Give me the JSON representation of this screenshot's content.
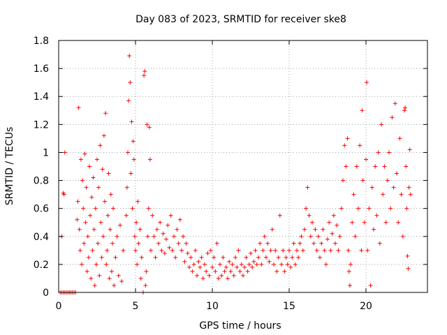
{
  "chart_data": {
    "type": "scatter",
    "title": "Day 083 of 2023, SRMTID for receiver ske8",
    "xlabel": "GPS time / hours",
    "ylabel": "SRMTID / TECUs",
    "xlim": [
      0,
      24
    ],
    "ylim": [
      0,
      1.8
    ],
    "xticks": [
      0,
      5,
      10,
      15,
      20
    ],
    "xtick_labels": [
      "0",
      "5",
      "10",
      "15",
      "20"
    ],
    "yticks": [
      0,
      0.2,
      0.4,
      0.6,
      0.8,
      1.0,
      1.2,
      1.4,
      1.6,
      1.8
    ],
    "ytick_labels": [
      "0",
      "0.2",
      "0.4",
      "0.6",
      "0.8",
      "1",
      "1.2",
      "1.4",
      "1.6",
      "1.8"
    ],
    "grid": true,
    "marker": "+",
    "color": "#ff0000",
    "series": [
      {
        "name": "SRMTID",
        "points": [
          [
            0.1,
            0
          ],
          [
            0.2,
            0
          ],
          [
            0.3,
            0
          ],
          [
            0.4,
            0
          ],
          [
            0.5,
            0
          ],
          [
            0.6,
            0
          ],
          [
            0.7,
            0
          ],
          [
            0.8,
            0
          ],
          [
            0.9,
            0
          ],
          [
            1.0,
            0
          ],
          [
            1.1,
            0
          ],
          [
            0.2,
            0.4
          ],
          [
            0.35,
            0.7
          ],
          [
            0.4,
            1.0
          ],
          [
            0.3,
            0.71
          ],
          [
            1.2,
            0.52
          ],
          [
            1.25,
            0.65
          ],
          [
            1.3,
            1.32
          ],
          [
            1.35,
            0.45
          ],
          [
            1.4,
            0.3
          ],
          [
            1.45,
            0.95
          ],
          [
            1.5,
            0.2
          ],
          [
            1.55,
            0.8
          ],
          [
            1.6,
            0.6
          ],
          [
            1.65,
            0.35
          ],
          [
            1.7,
            0.99
          ],
          [
            1.75,
            0.5
          ],
          [
            1.8,
            0.75
          ],
          [
            1.85,
            0.15
          ],
          [
            1.9,
            0.4
          ],
          [
            1.95,
            0.25
          ],
          [
            2.0,
            0.9
          ],
          [
            2.05,
            0.55
          ],
          [
            2.1,
            0.1
          ],
          [
            2.15,
            0.68
          ],
          [
            2.2,
            0.3
          ],
          [
            2.25,
            0.82
          ],
          [
            2.3,
            0.45
          ],
          [
            2.35,
            0.05
          ],
          [
            2.4,
            0.6
          ],
          [
            2.45,
            0.2
          ],
          [
            2.5,
            0.95
          ],
          [
            2.55,
            0.35
          ],
          [
            2.6,
            0.75
          ],
          [
            2.65,
            0.12
          ],
          [
            2.7,
            1.05
          ],
          [
            2.75,
            0.5
          ],
          [
            2.8,
            0.25
          ],
          [
            2.85,
            0.88
          ],
          [
            2.9,
            0.4
          ],
          [
            2.95,
            1.12
          ],
          [
            3.0,
            0.65
          ],
          [
            3.05,
            1.28
          ],
          [
            3.1,
            0.2
          ],
          [
            3.15,
            0.3
          ],
          [
            3.2,
            0.55
          ],
          [
            3.25,
            0.85
          ],
          [
            3.3,
            0.1
          ],
          [
            3.35,
            0.45
          ],
          [
            3.4,
            0.7
          ],
          [
            3.45,
            0.15
          ],
          [
            3.5,
            0.35
          ],
          [
            3.55,
            0.6
          ],
          [
            3.6,
            0.05
          ],
          [
            3.7,
            0.25
          ],
          [
            3.8,
            0.4
          ],
          [
            3.9,
            0.12
          ],
          [
            4.0,
            0.48
          ],
          [
            4.1,
            0.08
          ],
          [
            4.2,
            0.3
          ],
          [
            4.4,
            0.55
          ],
          [
            4.45,
            0.75
          ],
          [
            4.5,
            1.0
          ],
          [
            4.55,
            1.37
          ],
          [
            4.6,
            1.69
          ],
          [
            4.65,
            1.5
          ],
          [
            4.7,
            0.85
          ],
          [
            4.75,
            1.22
          ],
          [
            4.8,
            0.6
          ],
          [
            4.85,
            1.08
          ],
          [
            4.9,
            0.95
          ],
          [
            4.95,
            0.4
          ],
          [
            5.0,
            0.3
          ],
          [
            5.05,
            0.5
          ],
          [
            5.1,
            0.2
          ],
          [
            5.15,
            0.65
          ],
          [
            5.2,
            0.35
          ],
          [
            5.3,
            0.45
          ],
          [
            5.35,
            0.1
          ],
          [
            5.4,
            0.25
          ],
          [
            5.5,
            0.0
          ],
          [
            5.55,
            1.55
          ],
          [
            5.6,
            1.58
          ],
          [
            5.65,
            0.05
          ],
          [
            5.7,
            0.15
          ],
          [
            5.75,
            1.2
          ],
          [
            5.8,
            0.4
          ],
          [
            5.85,
            0.6
          ],
          [
            5.9,
            1.18
          ],
          [
            5.95,
            0.95
          ],
          [
            6.0,
            0.3
          ],
          [
            6.1,
            0.55
          ],
          [
            6.2,
            0.4
          ],
          [
            6.3,
            0.25
          ],
          [
            6.4,
            0.45
          ],
          [
            6.5,
            0.35
          ],
          [
            6.6,
            0.5
          ],
          [
            6.7,
            0.3
          ],
          [
            6.8,
            0.42
          ],
          [
            6.9,
            0.28
          ],
          [
            7.0,
            0.38
          ],
          [
            7.1,
            0.48
          ],
          [
            7.2,
            0.32
          ],
          [
            7.3,
            0.55
          ],
          [
            7.4,
            0.3
          ],
          [
            7.5,
            0.4
          ],
          [
            7.6,
            0.25
          ],
          [
            7.7,
            0.45
          ],
          [
            7.8,
            0.35
          ],
          [
            7.9,
            0.52
          ],
          [
            8.0,
            0.3
          ],
          [
            8.1,
            0.4
          ],
          [
            8.2,
            0.22
          ],
          [
            8.3,
            0.35
          ],
          [
            8.4,
            0.28
          ],
          [
            8.5,
            0.18
          ],
          [
            8.6,
            0.25
          ],
          [
            8.7,
            0.15
          ],
          [
            8.8,
            0.2
          ],
          [
            8.9,
            0.3
          ],
          [
            9.0,
            0.12
          ],
          [
            9.1,
            0.22
          ],
          [
            9.2,
            0.18
          ],
          [
            9.3,
            0.25
          ],
          [
            9.4,
            0.1
          ],
          [
            9.5,
            0.2
          ],
          [
            9.6,
            0.15
          ],
          [
            9.7,
            0.28
          ],
          [
            9.8,
            0.12
          ],
          [
            9.9,
            0.3
          ],
          [
            10.0,
            0.18
          ],
          [
            10.1,
            0.25
          ],
          [
            10.2,
            0.15
          ],
          [
            10.3,
            0.35
          ],
          [
            10.4,
            0.1
          ],
          [
            10.5,
            0.2
          ],
          [
            10.6,
            0.12
          ],
          [
            10.7,
            0.25
          ],
          [
            10.8,
            0.15
          ],
          [
            10.9,
            0.18
          ],
          [
            11.0,
            0.1
          ],
          [
            11.1,
            0.22
          ],
          [
            11.2,
            0.15
          ],
          [
            11.3,
            0.2
          ],
          [
            11.4,
            0.12
          ],
          [
            11.5,
            0.25
          ],
          [
            11.6,
            0.18
          ],
          [
            11.7,
            0.3
          ],
          [
            11.8,
            0.15
          ],
          [
            11.9,
            0.2
          ],
          [
            12.0,
            0.12
          ],
          [
            12.1,
            0.18
          ],
          [
            12.2,
            0.25
          ],
          [
            12.3,
            0.15
          ],
          [
            12.4,
            0.2
          ],
          [
            12.5,
            0.28
          ],
          [
            12.6,
            0.18
          ],
          [
            12.7,
            0.22
          ],
          [
            12.8,
            0.3
          ],
          [
            12.9,
            0.2
          ],
          [
            13.0,
            0.25
          ],
          [
            13.1,
            0.35
          ],
          [
            13.2,
            0.2
          ],
          [
            13.3,
            0.3
          ],
          [
            13.4,
            0.4
          ],
          [
            13.5,
            0.25
          ],
          [
            13.6,
            0.35
          ],
          [
            13.7,
            0.22
          ],
          [
            13.8,
            0.3
          ],
          [
            13.9,
            0.45
          ],
          [
            14.0,
            0.2
          ],
          [
            14.1,
            0.3
          ],
          [
            14.2,
            0.15
          ],
          [
            14.3,
            0.25
          ],
          [
            14.4,
            0.55
          ],
          [
            14.5,
            0.2
          ],
          [
            14.6,
            0.3
          ],
          [
            14.7,
            0.15
          ],
          [
            14.8,
            0.25
          ],
          [
            14.9,
            0.2
          ],
          [
            15.0,
            0.3
          ],
          [
            15.1,
            0.18
          ],
          [
            15.2,
            0.25
          ],
          [
            15.3,
            0.35
          ],
          [
            15.4,
            0.2
          ],
          [
            15.5,
            0.3
          ],
          [
            15.6,
            0.25
          ],
          [
            15.7,
            0.35
          ],
          [
            15.8,
            0.4
          ],
          [
            15.9,
            0.3
          ],
          [
            16.0,
            0.45
          ],
          [
            16.1,
            0.6
          ],
          [
            16.2,
            0.75
          ],
          [
            16.3,
            0.55
          ],
          [
            16.4,
            0.4
          ],
          [
            16.5,
            0.5
          ],
          [
            16.6,
            0.35
          ],
          [
            16.7,
            0.45
          ],
          [
            16.8,
            0.3
          ],
          [
            16.9,
            0.4
          ],
          [
            17.0,
            0.25
          ],
          [
            17.1,
            0.35
          ],
          [
            17.2,
            0.45
          ],
          [
            17.3,
            0.3
          ],
          [
            17.4,
            0.2
          ],
          [
            17.5,
            0.38
          ],
          [
            17.6,
            0.5
          ],
          [
            17.7,
            0.3
          ],
          [
            17.8,
            0.42
          ],
          [
            17.9,
            0.55
          ],
          [
            18.0,
            0.35
          ],
          [
            18.1,
            0.48
          ],
          [
            18.2,
            0.3
          ],
          [
            18.3,
            0.4
          ],
          [
            18.4,
            0.6
          ],
          [
            18.5,
            0.8
          ],
          [
            18.6,
            1.05
          ],
          [
            18.7,
            0.9
          ],
          [
            18.8,
            1.1
          ],
          [
            18.85,
            0.3
          ],
          [
            18.9,
            0.15
          ],
          [
            18.95,
            0.05
          ],
          [
            19.0,
            0.2
          ],
          [
            19.1,
            0.5
          ],
          [
            19.2,
            0.7
          ],
          [
            19.3,
            0.4
          ],
          [
            19.4,
            0.9
          ],
          [
            19.5,
            0.6
          ],
          [
            19.6,
            1.05
          ],
          [
            19.7,
            0.3
          ],
          [
            19.75,
            1.3
          ],
          [
            19.8,
            0.8
          ],
          [
            19.9,
            0.5
          ],
          [
            20.0,
            0.95
          ],
          [
            20.05,
            1.5
          ],
          [
            20.1,
            0.3
          ],
          [
            20.2,
            0.6
          ],
          [
            20.3,
            0.05
          ],
          [
            20.4,
            0.75
          ],
          [
            20.5,
            0.45
          ],
          [
            20.6,
            0.9
          ],
          [
            20.7,
            0.55
          ],
          [
            20.8,
            1.0
          ],
          [
            20.9,
            0.35
          ],
          [
            21.0,
            1.2
          ],
          [
            21.1,
            0.7
          ],
          [
            21.2,
            0.9
          ],
          [
            21.3,
            0.5
          ],
          [
            21.4,
            0.8
          ],
          [
            21.5,
            1.0
          ],
          [
            21.6,
            0.6
          ],
          [
            21.7,
            1.25
          ],
          [
            21.8,
            0.75
          ],
          [
            21.9,
            1.35
          ],
          [
            22.0,
            0.85
          ],
          [
            22.1,
            0.5
          ],
          [
            22.2,
            1.1
          ],
          [
            22.3,
            0.7
          ],
          [
            22.4,
            0.4
          ],
          [
            22.5,
            1.3
          ],
          [
            22.55,
            1.32
          ],
          [
            22.6,
            0.9
          ],
          [
            22.65,
            0.6
          ],
          [
            22.7,
            0.26
          ],
          [
            22.75,
            0.17
          ],
          [
            22.8,
            0.75
          ],
          [
            22.85,
            1.02
          ],
          [
            22.9,
            0.7
          ]
        ]
      }
    ]
  }
}
